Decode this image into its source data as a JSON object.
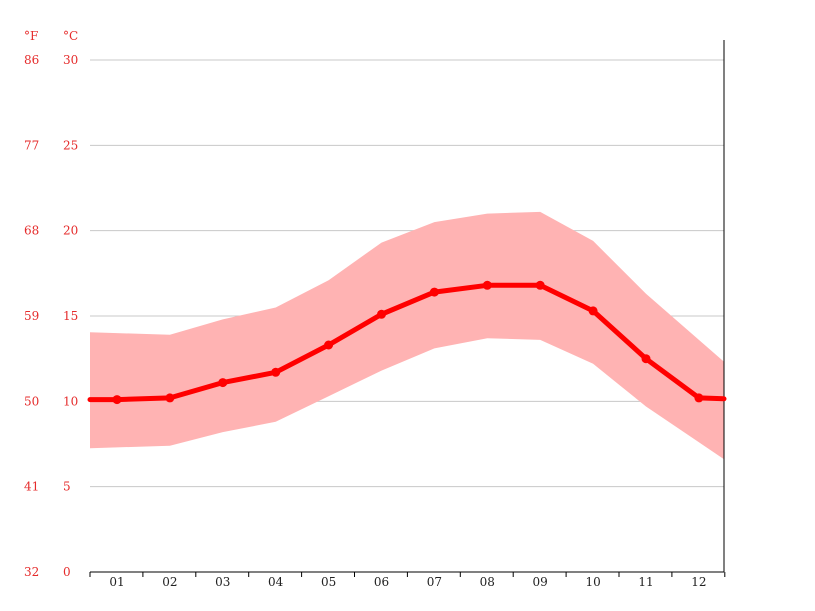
{
  "chart_data": {
    "type": "line",
    "unit_labels": {
      "fahrenheit": "°F",
      "celsius": "°C"
    },
    "y_ticks_celsius": [
      "0",
      "5",
      "10",
      "15",
      "20",
      "25",
      "30"
    ],
    "y_ticks_fahrenheit": [
      "32",
      "41",
      "50",
      "59",
      "68",
      "77",
      "86"
    ],
    "categories": [
      "01",
      "02",
      "03",
      "04",
      "05",
      "06",
      "07",
      "08",
      "09",
      "10",
      "11",
      "12"
    ],
    "ylim": [
      0,
      30
    ],
    "grid": true,
    "series": [
      {
        "role": "mean",
        "values": [
          10.1,
          10.2,
          11.1,
          11.7,
          13.3,
          15.1,
          16.4,
          16.8,
          16.8,
          15.3,
          12.5,
          10.2
        ],
        "color": "#ff0000"
      },
      {
        "role": "max",
        "values": [
          14.0,
          13.9,
          14.8,
          15.5,
          17.1,
          19.3,
          20.5,
          21.0,
          21.1,
          19.4,
          16.3,
          13.6
        ],
        "color": "#ffb3b3"
      },
      {
        "role": "min",
        "values": [
          7.3,
          7.4,
          8.2,
          8.8,
          10.3,
          11.8,
          13.1,
          13.7,
          13.6,
          12.2,
          9.7,
          7.6
        ],
        "color": "#ffb3b3"
      }
    ]
  }
}
